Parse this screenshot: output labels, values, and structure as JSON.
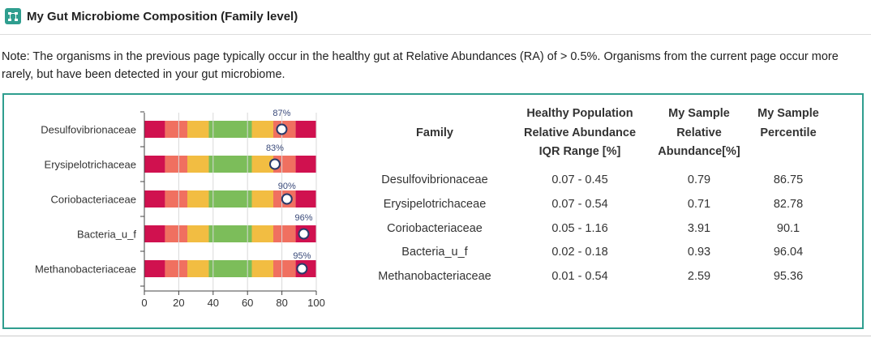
{
  "header": {
    "title": "My Gut Microbiome Composition (Family level)",
    "icon": "network-diagram-icon",
    "accent_color": "#2f9e8f"
  },
  "note": "Note: The organisms in the previous page typically occur in the healthy gut at Relative Abundances (RA) of > 0.5%. Organisms from the current page occur more rarely, but have been detected in your gut microbiome.",
  "chart_data": {
    "type": "bar",
    "orientation": "horizontal",
    "categories": [
      "Desulfovibrionaceae",
      "Erysipelotrichaceae",
      "Coriobacteriaceae",
      "Bacteria_u_f",
      "Methanobacteriaceae"
    ],
    "values": [
      87,
      83,
      90,
      96,
      95
    ],
    "value_labels": [
      "87%",
      "83%",
      "90%",
      "96%",
      "95%"
    ],
    "bands": [
      {
        "from": 0,
        "to": 12,
        "color": "#d0114f"
      },
      {
        "from": 12,
        "to": 25,
        "color": "#f07060"
      },
      {
        "from": 25,
        "to": 37.5,
        "color": "#f2bd42"
      },
      {
        "from": 37.5,
        "to": 62.5,
        "color": "#7cbd5a"
      },
      {
        "from": 62.5,
        "to": 75,
        "color": "#f2bd42"
      },
      {
        "from": 75,
        "to": 88,
        "color": "#f07060"
      },
      {
        "from": 88,
        "to": 100,
        "color": "#d0114f"
      }
    ],
    "xlim": [
      0,
      100
    ],
    "xticks": [
      0,
      20,
      40,
      60,
      80,
      100
    ],
    "grid": true,
    "xlabel": "",
    "ylabel": ""
  },
  "table": {
    "headers": [
      {
        "lines": [
          "Family"
        ]
      },
      {
        "lines": [
          "Healthy Population",
          "Relative Abundance",
          "IQR Range [%]"
        ]
      },
      {
        "lines": [
          "My Sample",
          "Relative",
          "Abundance[%]"
        ]
      },
      {
        "lines": [
          "My Sample",
          "Percentile"
        ]
      }
    ],
    "rows": [
      [
        "Desulfovibrionaceae",
        "0.07 - 0.45",
        "0.79",
        "86.75"
      ],
      [
        "Erysipelotrichaceae",
        "0.07 - 0.54",
        "0.71",
        "82.78"
      ],
      [
        "Coriobacteriaceae",
        "0.05 - 1.16",
        "3.91",
        "90.1"
      ],
      [
        "Bacteria_u_f",
        "0.02 - 0.18",
        "0.93",
        "96.04"
      ],
      [
        "Methanobacteriaceae",
        "0.01 - 0.54",
        "2.59",
        "95.36"
      ]
    ]
  }
}
